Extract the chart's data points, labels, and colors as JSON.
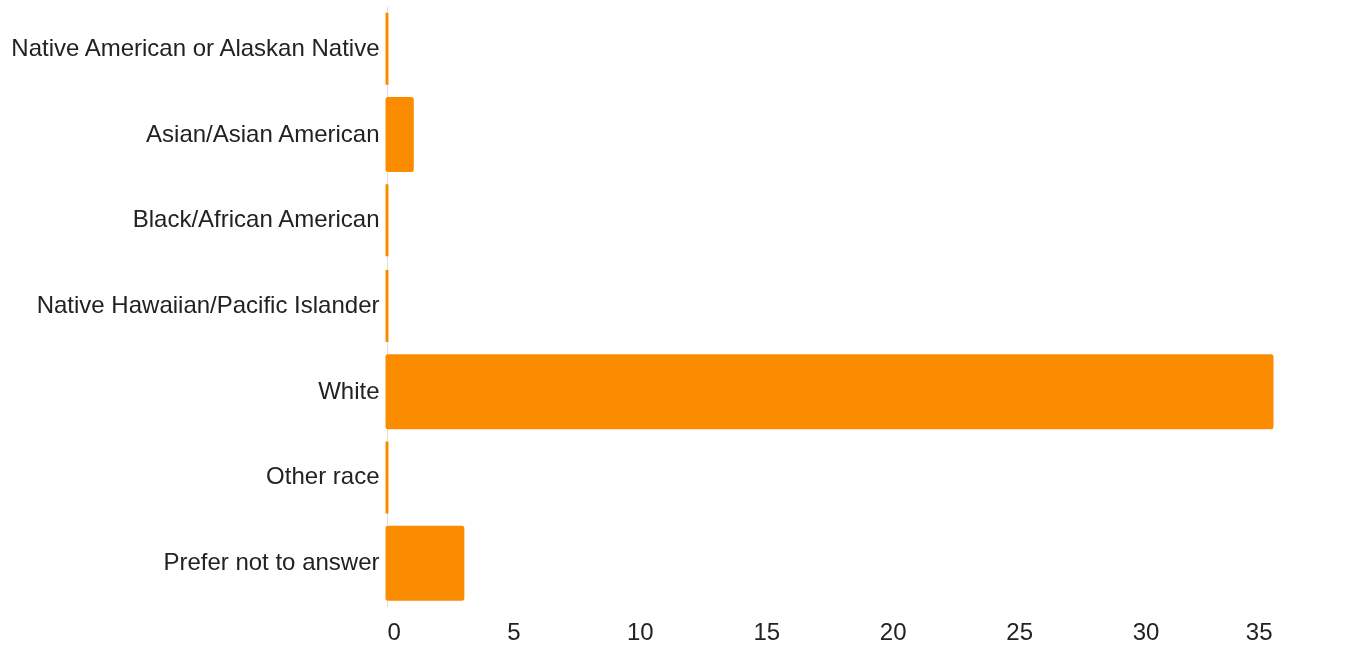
{
  "chart_data": {
    "type": "bar",
    "orientation": "horizontal",
    "categories": [
      "Native American or Alaskan Native",
      "Asian/Asian American",
      "Black/African American",
      "Native Hawaiian/Pacific Islander",
      "White",
      "Other race",
      "Prefer not to answer"
    ],
    "values": [
      0,
      1,
      0,
      0,
      35,
      0,
      3
    ],
    "color": "#fb8c00",
    "xlim": [
      0,
      35
    ],
    "xticks": [
      0,
      5,
      10,
      15,
      20,
      25,
      30,
      35
    ],
    "grid": false
  }
}
